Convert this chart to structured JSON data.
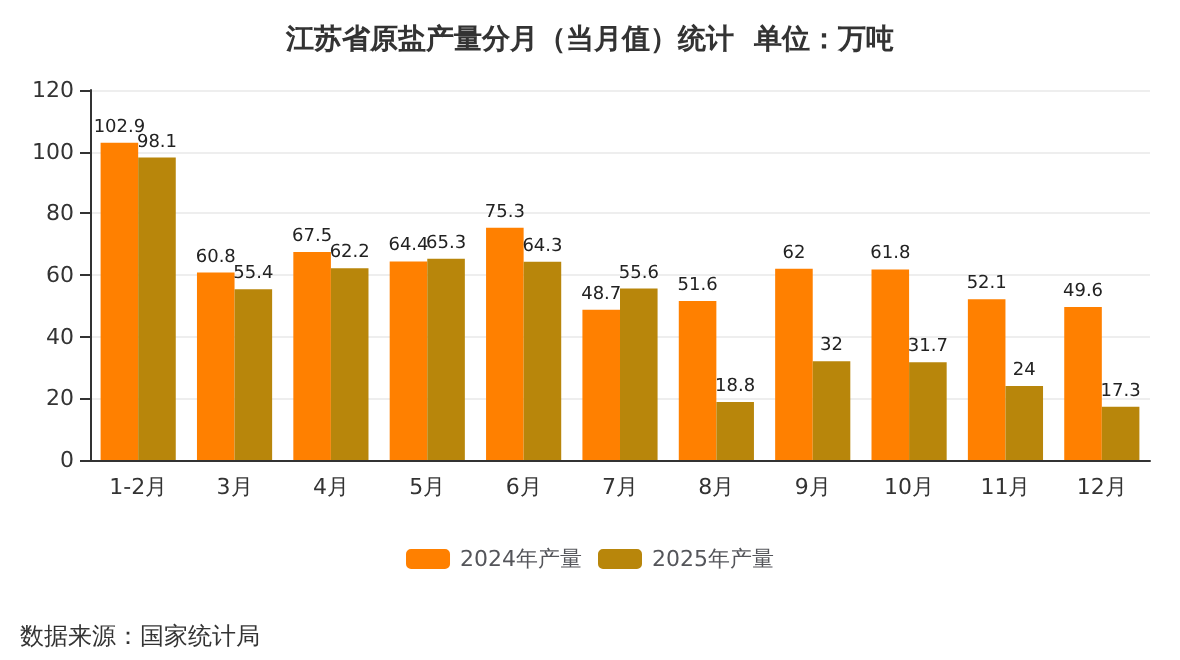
{
  "chart_data": {
    "type": "bar",
    "title": "江苏省原盐产量分月（当月值）统计  单位：万吨",
    "categories": [
      "1-2月",
      "3月",
      "4月",
      "5月",
      "6月",
      "7月",
      "8月",
      "9月",
      "10月",
      "11月",
      "12月"
    ],
    "series": [
      {
        "name": "2024年产量",
        "color": "#ff8000",
        "values": [
          102.9,
          60.8,
          67.5,
          64.4,
          75.3,
          48.7,
          51.6,
          62,
          61.8,
          52.1,
          49.6
        ]
      },
      {
        "name": "2025年产量",
        "color": "#b8860b",
        "values": [
          98.1,
          55.4,
          62.2,
          65.3,
          64.3,
          55.6,
          18.8,
          32,
          31.7,
          24,
          17.3
        ]
      }
    ],
    "ylim": [
      0,
      120
    ],
    "yticks": [
      0,
      20,
      40,
      60,
      80,
      100,
      120
    ],
    "grid": "y",
    "legend": "bottom",
    "data_labels": true,
    "annotations": [
      "数据来源：国家统计局"
    ]
  }
}
